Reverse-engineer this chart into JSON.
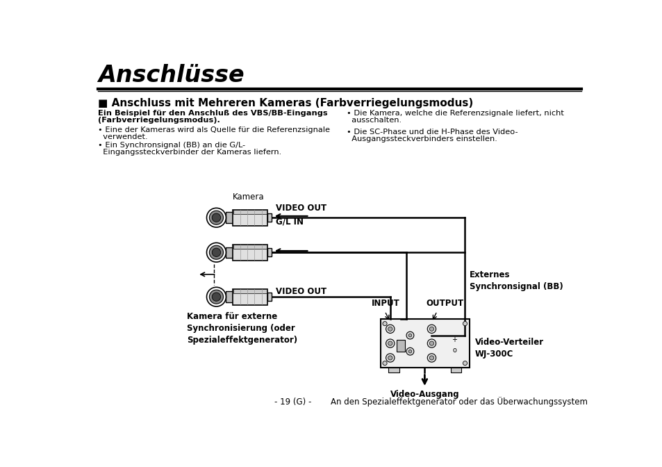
{
  "title": "Anschlüsse",
  "subtitle": "■ Anschluss mit Mehreren Kameras (Farbverriegelungsmodus)",
  "bold_heading_line1": "Ein Beispiel für den Anschluß des VBS/BB-Eingangs",
  "bold_heading_line2": "(Farbverriegelungsmodus).",
  "bullet1_line1": "• Eine der Kameras wird als Quelle für die Referenzsignale",
  "bullet1_line2": "  verwendet.",
  "bullet2_line1": "• Ein Synchronsignal (BB) an die G/L-",
  "bullet2_line2": "  Eingangssteckverbinder der Kameras liefern.",
  "bullet3_line1": "• Die Kamera, welche die Referenzsignale liefert, nicht",
  "bullet3_line2": "  ausschalten.",
  "bullet4_line1": "• Die SC-Phase und die H-Phase des Video-",
  "bullet4_line2": "  Ausgangssteckverbinders einstellen.",
  "label_kamera": "Kamera",
  "label_video_out1": "VIDEO OUT",
  "label_gl_in": "G/L IN",
  "label_video_out2": "VIDEO OUT",
  "label_externes": "Externes\nSynchronsignal (BB)",
  "label_input": "INPUT",
  "label_output": "OUTPUT",
  "label_video_verteiler": "Video-Verteiler\nWJ-300C",
  "label_kamera_extern": "Kamera für externe\nSynchronisierung (oder\nSpezialeffektgenerator)",
  "label_video_ausgang": "Video-Ausgang",
  "footer_center": "- 19 (G) -",
  "footer_right": "An den Spezialeffektgenerator oder das Überwachungssystem",
  "bg_color": "#ffffff",
  "text_color": "#000000"
}
